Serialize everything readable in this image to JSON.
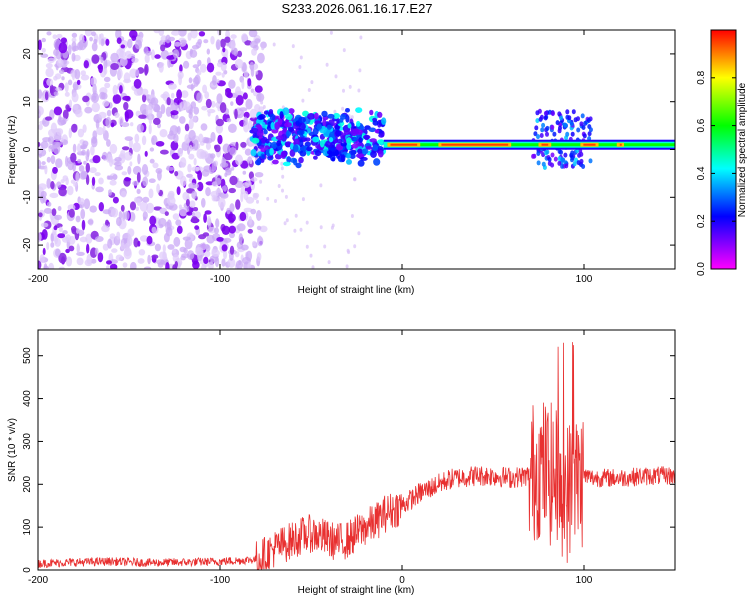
{
  "title": "S233.2026.061.16.17.E27",
  "chart_data": [
    {
      "type": "heatmap",
      "xlabel": "Height of straight line (km)",
      "ylabel": "Frequency (Hz)",
      "xlim": [
        -200,
        150
      ],
      "ylim": [
        -25,
        25
      ],
      "xticks": [
        -200,
        -100,
        0,
        100
      ],
      "yticks": [
        -20,
        -10,
        0,
        10,
        20
      ],
      "colorbar": {
        "label": "Normalized spectral amplitude",
        "range": [
          0,
          1
        ],
        "ticks": [
          0,
          0.2,
          0.4,
          0.6,
          0.8
        ],
        "colormap": [
          "#ff00ff",
          "#0000ff",
          "#00ffff",
          "#00ff00",
          "#ffff00",
          "#ff0000"
        ]
      },
      "features": {
        "noise_region_x": [
          -200,
          -80
        ],
        "signal_line_x": [
          -80,
          150
        ],
        "signal_line_freq_hz": 1,
        "signal_peak_amplitude": 0.95
      }
    },
    {
      "type": "line",
      "xlabel": "Height of straight line (km)",
      "ylabel": "SNR (10 * v/v)",
      "xlim": [
        -200,
        150
      ],
      "ylim": [
        0,
        560
      ],
      "xticks": [
        -200,
        -100,
        0,
        100
      ],
      "yticks": [
        0,
        100,
        200,
        300,
        400,
        500
      ],
      "color": "#e83030",
      "series": [
        {
          "name": "SNR",
          "x": [
            -200,
            -180,
            -160,
            -140,
            -120,
            -100,
            -90,
            -80,
            -75,
            -70,
            -65,
            -60,
            -55,
            -50,
            -45,
            -40,
            -35,
            -30,
            -25,
            -20,
            -15,
            -10,
            -5,
            0,
            5,
            10,
            15,
            20,
            25,
            30,
            40,
            50,
            60,
            70,
            75,
            80,
            85,
            90,
            95,
            100,
            105,
            110,
            120,
            130,
            140,
            150
          ],
          "values": [
            15,
            18,
            20,
            17,
            18,
            20,
            22,
            25,
            35,
            50,
            60,
            70,
            80,
            85,
            80,
            70,
            65,
            70,
            85,
            100,
            110,
            130,
            140,
            150,
            165,
            180,
            190,
            200,
            210,
            215,
            220,
            220,
            215,
            220,
            240,
            230,
            210,
            180,
            200,
            220,
            215,
            215,
            215,
            218,
            220,
            220
          ]
        }
      ]
    }
  ]
}
